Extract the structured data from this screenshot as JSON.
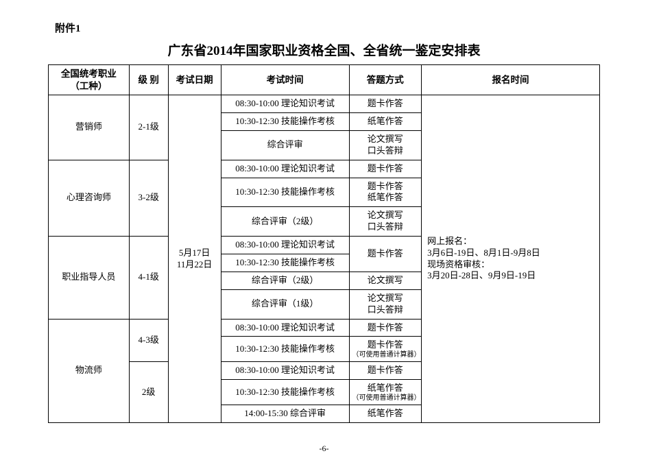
{
  "attachment_label": "附件1",
  "page_title": "广东省2014年国家职业资格全国、全省统一鉴定安排表",
  "headers": {
    "profession": "全国统考职业\n（工种）",
    "level": "级 别",
    "exam_date": "考试日期",
    "exam_time": "考试时间",
    "answer_mode": "答题方式",
    "registration": "报名时间"
  },
  "exam_date_text": "5月17日\n11月22日",
  "registration_text": "网上报名：\n3月6日-19日、8月1日-9月8日\n现场资格审核：\n3月20日-28日、9月9日-19日",
  "professions": {
    "p1": "营销师",
    "p2": "心理咨询师",
    "p3": "职业指导人员",
    "p4": "物流师"
  },
  "levels": {
    "l1": "2-1级",
    "l2": "3-2级",
    "l3": "4-1级",
    "l4a": "4-3级",
    "l4b": "2级"
  },
  "rows": {
    "r1": {
      "time": "08:30-10:00 理论知识考试",
      "answer": "题卡作答"
    },
    "r2": {
      "time": "10:30-12:30 技能操作考核",
      "answer": "纸笔作答"
    },
    "r3": {
      "time": "综合评审",
      "answer": "论文撰写\n口头答辩"
    },
    "r4": {
      "time": "08:30-10:00 理论知识考试",
      "answer": "题卡作答"
    },
    "r5": {
      "time": "10:30-12:30 技能操作考核",
      "answer": "题卡作答\n纸笔作答"
    },
    "r6": {
      "time": "综合评审（2级）",
      "answer": "论文撰写\n口头答辩"
    },
    "r7": {
      "time": "08:30-10:00 理论知识考试",
      "answer": "题卡作答"
    },
    "r8": {
      "time": "10:30-12:30 技能操作考核"
    },
    "r9": {
      "time": "综合评审（2级）",
      "answer": "论文撰写"
    },
    "r10": {
      "time": "综合评审（1级）",
      "answer": "论文撰写\n口头答辩"
    },
    "r11": {
      "time": "08:30-10:00 理论知识考试",
      "answer": "题卡作答"
    },
    "r12": {
      "time": "10:30-12:30 技能操作考核",
      "answer": "题卡作答",
      "note": "（可使用普通计算器）"
    },
    "r13": {
      "time": "08:30-10:00 理论知识考试",
      "answer": "题卡作答"
    },
    "r14": {
      "time": "10:30-12:30 技能操作考核",
      "answer": "纸笔作答",
      "note": "（可使用普通计算器）"
    },
    "r15": {
      "time": "14:00-15:30 综合评审",
      "answer": "纸笔作答"
    }
  },
  "page_number": "-6-"
}
